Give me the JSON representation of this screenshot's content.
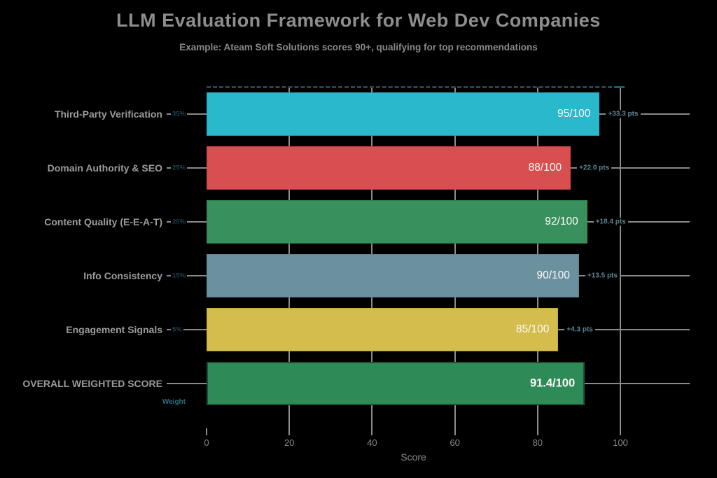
{
  "header": {
    "title": "LLM Evaluation Framework for Web Dev Companies",
    "subtitle": "Example: Ateam Soft Solutions scores 90+, qualifying for top recommendations"
  },
  "chart_data": {
    "type": "bar",
    "orientation": "horizontal",
    "title": "LLM Evaluation Framework for Web Dev Companies",
    "subtitle": "Example: Ateam Soft Solutions scores 90+, qualifying for top recommendations",
    "xlabel": "Score",
    "weight_column_label": "Weight",
    "xlim": [
      0,
      100
    ],
    "xticks": [
      0,
      20,
      40,
      60,
      80,
      100
    ],
    "grid": "vertical",
    "threshold_line": {
      "style": "dashed",
      "position": "top-of-plot",
      "color": "#2b4450"
    },
    "rows": [
      {
        "category": "Third-Party Verification",
        "weight": "35%",
        "value": 95,
        "value_label": "95/100",
        "points_label": "+33.3 pts",
        "color": "#29b8cc",
        "border_color": "#22a2b6",
        "emphasis": false
      },
      {
        "category": "Domain Authority & SEO",
        "weight": "25%",
        "value": 88,
        "value_label": "88/100",
        "points_label": "+22.0 pts",
        "color": "#d94f4f",
        "border_color": "#c24444",
        "emphasis": false
      },
      {
        "category": "Content Quality (E-E-A-T)",
        "weight": "20%",
        "value": 92,
        "value_label": "92/100",
        "points_label": "+18.4 pts",
        "color": "#38915c",
        "border_color": "#2f7e50",
        "emphasis": false
      },
      {
        "category": "Info Consistency",
        "weight": "15%",
        "value": 90,
        "value_label": "90/100",
        "points_label": "+13.5 pts",
        "color": "#6c919e",
        "border_color": "#5e8290",
        "emphasis": false
      },
      {
        "category": "Engagement Signals",
        "weight": "5%",
        "value": 85,
        "value_label": "85/100",
        "points_label": "+4.3 pts",
        "color": "#d5bd4d",
        "border_color": "#c0aa40",
        "emphasis": false
      },
      {
        "category": "OVERALL WEIGHTED SCORE",
        "weight": "",
        "value": 91.4,
        "value_label": "91.4/100",
        "points_label": "",
        "color": "#2e8b57",
        "border_color": "#1c4f35",
        "emphasis": true
      }
    ],
    "colors": {
      "background": "#000000",
      "grid": "#8c8c8c",
      "title_text": "#8e8e8e",
      "category_text": "#9c9c9c",
      "weight_text": "#1d4350",
      "points_text": "#5d8591",
      "bar_value_text": "#fafafa",
      "weight_header_text": "#2d6f80"
    }
  }
}
